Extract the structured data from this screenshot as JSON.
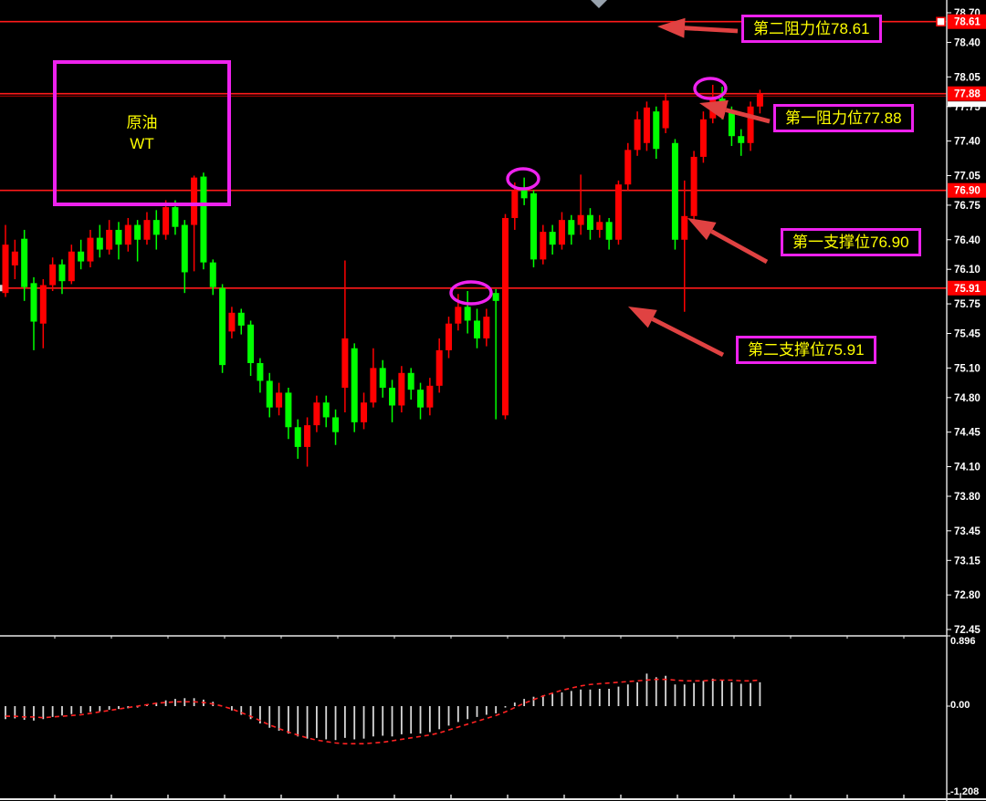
{
  "symbol": {
    "line1": "原油",
    "line2": "WT"
  },
  "annotations": {
    "res2": "第二阻力位78.61",
    "res1": "第一阻力位77.88",
    "sup1": "第一支撑位76.90",
    "sup2": "第二支撑位75.91"
  },
  "macd_axis": {
    "top": "0.896",
    "zero": "0.00",
    "bottom": "-1.208"
  },
  "colors": {
    "background": "#000000",
    "bull": "#ff0000",
    "bear": "#00ff00",
    "level_line": "#ff1a1a",
    "current_price_line": "#8b0000",
    "magenta": "#ee22ee",
    "yellow": "#ffff00",
    "arrow": "#e04242",
    "axis_text": "#ffffff",
    "badge_bg": "#ff0000",
    "macd_bar": "#d8d8d8",
    "macd_dea": "#ff2222"
  },
  "chart_data": {
    "type": "candlestick",
    "title": "原油 WT (WTI Crude Oil)",
    "legend_position": "none",
    "grid": false,
    "price_axis_ticks": [
      "78.70",
      "78.40",
      "78.05",
      "77.75",
      "77.40",
      "77.05",
      "76.75",
      "76.40",
      "76.10",
      "75.75",
      "75.45",
      "75.10",
      "74.80",
      "74.45",
      "74.10",
      "73.80",
      "73.45",
      "73.15",
      "72.80",
      "72.45"
    ],
    "price_axis_range": [
      72.45,
      78.7
    ],
    "level_badges": [
      "78.61",
      "77.88",
      "76.90",
      "75.91"
    ],
    "levels": [
      {
        "price": 78.61,
        "label": "第二阻力位78.61"
      },
      {
        "price": 77.88,
        "label": "第一阻力位77.88"
      },
      {
        "price": 76.9,
        "label": "第一支撑位76.90"
      },
      {
        "price": 75.91,
        "label": "第二支撑位75.91"
      }
    ],
    "current_price": 77.855,
    "candle_convention": "red=up, green=down",
    "ohlc": [
      [
        75.86,
        76.55,
        75.82,
        76.35
      ],
      [
        76.14,
        76.4,
        76.0,
        76.28
      ],
      [
        76.41,
        76.5,
        75.78,
        75.92
      ],
      [
        75.96,
        76.02,
        75.28,
        75.57
      ],
      [
        75.55,
        76.0,
        75.3,
        75.94
      ],
      [
        75.94,
        76.22,
        75.88,
        76.15
      ],
      [
        76.15,
        76.2,
        75.85,
        75.98
      ],
      [
        75.98,
        76.35,
        75.95,
        76.28
      ],
      [
        76.28,
        76.4,
        76.1,
        76.18
      ],
      [
        76.18,
        76.5,
        76.12,
        76.42
      ],
      [
        76.42,
        76.55,
        76.22,
        76.3
      ],
      [
        76.3,
        76.6,
        76.25,
        76.5
      ],
      [
        76.5,
        76.58,
        76.2,
        76.35
      ],
      [
        76.35,
        76.62,
        76.28,
        76.55
      ],
      [
        76.55,
        76.6,
        76.18,
        76.4
      ],
      [
        76.4,
        76.68,
        76.35,
        76.6
      ],
      [
        76.6,
        76.7,
        76.3,
        76.45
      ],
      [
        76.45,
        76.8,
        76.4,
        76.73
      ],
      [
        76.73,
        76.8,
        76.45,
        76.53
      ],
      [
        76.55,
        76.6,
        75.86,
        76.07
      ],
      [
        76.55,
        77.05,
        76.08,
        77.03
      ],
      [
        77.04,
        77.08,
        76.1,
        76.17
      ],
      [
        76.17,
        76.2,
        75.84,
        75.92
      ],
      [
        75.91,
        75.95,
        75.05,
        75.13
      ],
      [
        75.47,
        75.72,
        75.4,
        75.66
      ],
      [
        75.66,
        75.7,
        75.44,
        75.53
      ],
      [
        75.54,
        75.58,
        75.02,
        75.15
      ],
      [
        75.15,
        75.2,
        74.85,
        74.97
      ],
      [
        74.97,
        75.05,
        74.6,
        74.7
      ],
      [
        74.7,
        74.95,
        74.62,
        74.85
      ],
      [
        74.85,
        74.9,
        74.38,
        74.5
      ],
      [
        74.5,
        74.58,
        74.18,
        74.3
      ],
      [
        74.3,
        74.6,
        74.1,
        74.52
      ],
      [
        74.52,
        74.82,
        74.45,
        74.75
      ],
      [
        74.75,
        74.82,
        74.5,
        74.6
      ],
      [
        74.6,
        74.68,
        74.32,
        74.45
      ],
      [
        74.9,
        76.19,
        74.65,
        75.4
      ],
      [
        75.3,
        75.35,
        74.45,
        74.55
      ],
      [
        74.55,
        74.85,
        74.48,
        74.75
      ],
      [
        74.75,
        75.3,
        74.7,
        75.1
      ],
      [
        75.1,
        75.18,
        74.8,
        74.9
      ],
      [
        74.9,
        74.98,
        74.55,
        74.72
      ],
      [
        74.72,
        75.12,
        74.65,
        75.05
      ],
      [
        75.05,
        75.1,
        74.78,
        74.88
      ],
      [
        74.88,
        74.95,
        74.58,
        74.7
      ],
      [
        74.7,
        75.0,
        74.62,
        74.92
      ],
      [
        74.92,
        75.4,
        74.85,
        75.28
      ],
      [
        75.28,
        75.62,
        75.2,
        75.55
      ],
      [
        75.55,
        75.85,
        75.48,
        75.72
      ],
      [
        75.72,
        75.88,
        75.45,
        75.58
      ],
      [
        75.58,
        75.7,
        75.3,
        75.4
      ],
      [
        75.4,
        75.7,
        75.32,
        75.62
      ],
      [
        75.86,
        75.9,
        74.58,
        75.78
      ],
      [
        74.62,
        76.66,
        74.58,
        76.62
      ],
      [
        76.62,
        76.98,
        76.5,
        76.9
      ],
      [
        76.9,
        77.03,
        76.75,
        76.82
      ],
      [
        76.87,
        76.9,
        76.12,
        76.2
      ],
      [
        76.2,
        76.55,
        76.15,
        76.48
      ],
      [
        76.48,
        76.55,
        76.25,
        76.35
      ],
      [
        76.35,
        76.68,
        76.3,
        76.6
      ],
      [
        76.6,
        76.65,
        76.35,
        76.45
      ],
      [
        76.55,
        77.06,
        76.45,
        76.65
      ],
      [
        76.65,
        76.72,
        76.4,
        76.5
      ],
      [
        76.5,
        76.65,
        76.42,
        76.58
      ],
      [
        76.58,
        76.62,
        76.3,
        76.4
      ],
      [
        76.4,
        77.0,
        76.35,
        76.96
      ],
      [
        76.96,
        77.38,
        76.9,
        77.31
      ],
      [
        77.31,
        77.7,
        77.25,
        77.62
      ],
      [
        77.38,
        77.8,
        77.3,
        77.74
      ],
      [
        77.7,
        77.75,
        77.22,
        77.32
      ],
      [
        77.53,
        77.88,
        77.48,
        77.81
      ],
      [
        77.38,
        77.42,
        76.3,
        76.4
      ],
      [
        76.4,
        77.0,
        75.67,
        76.64
      ],
      [
        76.64,
        77.3,
        76.58,
        77.24
      ],
      [
        77.24,
        77.7,
        77.18,
        77.62
      ],
      [
        77.63,
        77.97,
        77.58,
        77.83
      ],
      [
        77.83,
        77.95,
        77.62,
        77.7
      ],
      [
        77.7,
        77.75,
        77.35,
        77.45
      ],
      [
        77.45,
        77.52,
        77.25,
        77.38
      ],
      [
        77.38,
        77.8,
        77.3,
        77.75
      ],
      [
        77.75,
        77.92,
        77.68,
        77.88
      ]
    ],
    "macd": {
      "ylim": [
        -1.208,
        0.896
      ],
      "axis_labels": [
        "0.896",
        "0.00",
        "-1.208"
      ],
      "hist": [
        -0.18,
        -0.17,
        -0.19,
        -0.2,
        -0.18,
        -0.15,
        -0.13,
        -0.11,
        -0.1,
        -0.08,
        -0.07,
        -0.05,
        -0.04,
        -0.03,
        -0.02,
        0.02,
        0.05,
        0.08,
        0.1,
        0.11,
        0.11,
        0.09,
        0.06,
        0.0,
        -0.06,
        -0.12,
        -0.18,
        -0.24,
        -0.3,
        -0.34,
        -0.38,
        -0.42,
        -0.45,
        -0.44,
        -0.46,
        -0.47,
        -0.44,
        -0.46,
        -0.45,
        -0.42,
        -0.41,
        -0.42,
        -0.39,
        -0.38,
        -0.38,
        -0.36,
        -0.32,
        -0.27,
        -0.22,
        -0.18,
        -0.15,
        -0.12,
        -0.1,
        -0.02,
        0.05,
        0.1,
        0.13,
        0.15,
        0.17,
        0.19,
        0.21,
        0.23,
        0.23,
        0.24,
        0.24,
        0.27,
        0.3,
        0.33,
        0.45,
        0.4,
        0.42,
        0.3,
        0.3,
        0.32,
        0.35,
        0.38,
        0.36,
        0.33,
        0.31,
        0.32,
        0.33
      ],
      "dea": [
        -0.14,
        -0.14,
        -0.15,
        -0.15,
        -0.16,
        -0.15,
        -0.14,
        -0.13,
        -0.12,
        -0.1,
        -0.08,
        -0.06,
        -0.04,
        -0.02,
        0.0,
        0.02,
        0.04,
        0.05,
        0.06,
        0.06,
        0.06,
        0.05,
        0.03,
        0.0,
        -0.04,
        -0.09,
        -0.14,
        -0.2,
        -0.26,
        -0.31,
        -0.36,
        -0.4,
        -0.44,
        -0.47,
        -0.49,
        -0.51,
        -0.52,
        -0.52,
        -0.52,
        -0.51,
        -0.5,
        -0.48,
        -0.46,
        -0.44,
        -0.42,
        -0.4,
        -0.37,
        -0.33,
        -0.29,
        -0.25,
        -0.21,
        -0.17,
        -0.13,
        -0.08,
        -0.02,
        0.04,
        0.09,
        0.14,
        0.18,
        0.22,
        0.25,
        0.28,
        0.3,
        0.31,
        0.32,
        0.33,
        0.34,
        0.35,
        0.36,
        0.37,
        0.37,
        0.36,
        0.35,
        0.35,
        0.35,
        0.36,
        0.36,
        0.36,
        0.35,
        0.35,
        0.36
      ]
    }
  }
}
